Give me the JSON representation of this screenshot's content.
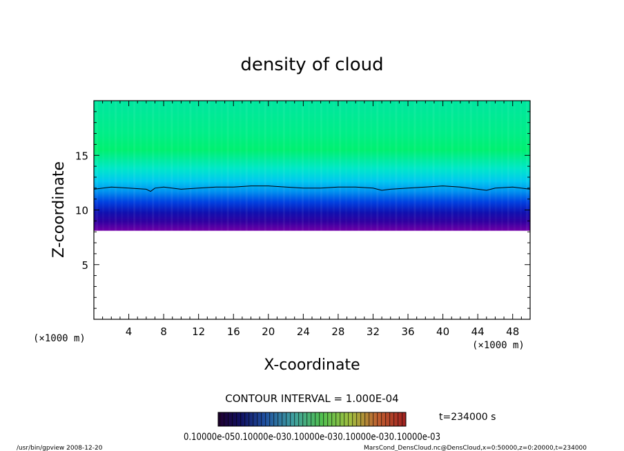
{
  "chart_data": {
    "type": "heatmap",
    "title": "density of cloud",
    "xlabel": "X-coordinate",
    "ylabel": "Z-coordinate",
    "x_unit": "(×1000 m)",
    "y_unit": "(×1000 m)",
    "xlim": [
      0,
      50
    ],
    "ylim": [
      0,
      20
    ],
    "x_ticks": [
      4,
      8,
      12,
      16,
      20,
      24,
      28,
      32,
      36,
      40,
      44,
      48
    ],
    "y_ticks": [
      5,
      10,
      15
    ],
    "cloud_base_z": 8.1,
    "contour_line": {
      "x": [
        0,
        2,
        4,
        6,
        6.5,
        7,
        8,
        10,
        12,
        14,
        16,
        18,
        20,
        22,
        24,
        26,
        28,
        30,
        32,
        33,
        34,
        36,
        38,
        40,
        42,
        44,
        45,
        46,
        48,
        50
      ],
      "z": [
        11.9,
        12.1,
        12.0,
        11.9,
        11.7,
        12.0,
        12.1,
        11.9,
        12.0,
        12.1,
        12.1,
        12.2,
        12.2,
        12.1,
        12.0,
        12.0,
        12.1,
        12.1,
        12.0,
        11.8,
        11.9,
        12.0,
        12.1,
        12.2,
        12.1,
        11.9,
        11.8,
        12.0,
        12.1,
        11.9
      ]
    },
    "contour_interval": "CONTOUR INTERVAL = 1.000E-04",
    "colorbar_labels": "0.10000e-050.10000e-030.10000e-030.10000e-030.10000e-03",
    "time_label": "t=234000 s"
  },
  "footer": {
    "left": "/usr/bin/gpview  2008-12-20",
    "right": "MarsCond_DensCloud.nc@DensCloud,x=0:50000,z=0:20000,t=234000"
  }
}
